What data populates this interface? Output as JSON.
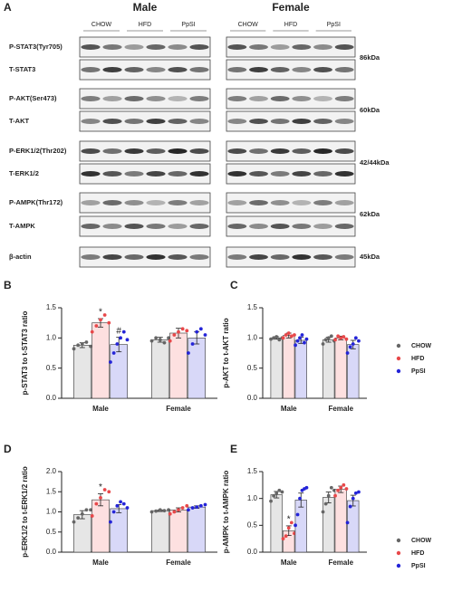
{
  "figure_a": {
    "panel": "A",
    "sexes": [
      "Male",
      "Female"
    ],
    "groups": [
      "CHOW",
      "HFD",
      "PpSI"
    ],
    "rows": [
      "P-STAT3(Tyr705)",
      "T-STAT3",
      "P-AKT(Ser473)",
      "T-AKT",
      "P-ERK1/2(Thr202)",
      "T-ERK1/2",
      "P-AMPK(Thr172)",
      "T-AMPK",
      "β-actin"
    ],
    "sizes": [
      "86kDa",
      "60kDa",
      "42/44kDa",
      "62kDa",
      "45kDa"
    ]
  },
  "chart_data": [
    {
      "type": "bar",
      "panel": "B",
      "ylabel": "p-STAT3 to t-STAT3 ratio",
      "categories": [
        "Male",
        "Female"
      ],
      "ylim": [
        0,
        1.5
      ],
      "yticks": [
        {
          "value": 0,
          "label": "0.0"
        },
        {
          "value": 0.5,
          "label": "0.5"
        },
        {
          "value": 1,
          "label": "1.0"
        },
        {
          "value": 1.5,
          "label": "1.5"
        }
      ],
      "legend": false,
      "series": [
        {
          "name": "CHOW",
          "color": "#666666",
          "fill": "#e6e6e6",
          "values": [
            0.88,
            0.97
          ],
          "errors": [
            0.04,
            0.04
          ],
          "points": [
            [
              0.82,
              0.88,
              0.9,
              0.93,
              0.86
            ],
            [
              0.95,
              1.0,
              0.97,
              0.92,
              1.0
            ]
          ]
        },
        {
          "name": "HFD",
          "color": "#e8484a",
          "fill": "#fde0e0",
          "values": [
            1.25,
            1.08
          ],
          "errors": [
            0.07,
            0.08
          ],
          "points": [
            [
              1.1,
              1.2,
              1.3,
              1.38,
              1.25
            ],
            [
              0.95,
              1.05,
              1.1,
              1.15,
              1.12
            ]
          ],
          "marks": [
            "*",
            null
          ]
        },
        {
          "name": "PpSI",
          "color": "#2424d8",
          "fill": "#d8d8f8",
          "values": [
            0.89,
            1.0
          ],
          "errors": [
            0.12,
            0.1
          ],
          "points": [
            [
              0.6,
              0.75,
              0.9,
              1.0,
              1.1,
              0.97
            ],
            [
              0.75,
              0.9,
              1.1,
              1.15,
              1.05
            ]
          ],
          "marks": [
            "#",
            null
          ]
        }
      ]
    },
    {
      "type": "bar",
      "panel": "C",
      "ylabel": "p-AKT to t-AKT ratio",
      "categories": [
        "Male",
        "Female"
      ],
      "ylim": [
        0,
        1.5
      ],
      "yticks": [
        {
          "value": 0,
          "label": "0.0"
        },
        {
          "value": 0.5,
          "label": "0.5"
        },
        {
          "value": 1,
          "label": "1.0"
        },
        {
          "value": 1.5,
          "label": "1.5"
        }
      ],
      "legend": true,
      "series": [
        {
          "name": "CHOW",
          "color": "#666666",
          "fill": "#e6e6e6",
          "values": [
            1.0,
            0.97
          ],
          "errors": [
            0.02,
            0.04
          ],
          "points": [
            [
              0.98,
              1.0,
              1.02,
              0.97,
              1.0
            ],
            [
              0.9,
              0.97,
              1.0,
              1.03,
              0.95
            ]
          ]
        },
        {
          "name": "HFD",
          "color": "#e8484a",
          "fill": "#fde0e0",
          "values": [
            1.04,
            1.0
          ],
          "errors": [
            0.04,
            0.03
          ],
          "points": [
            [
              1.0,
              1.05,
              1.08,
              1.03,
              1.05
            ],
            [
              0.97,
              1.03,
              1.0,
              1.02,
              0.98
            ]
          ]
        },
        {
          "name": "PpSI",
          "color": "#2424d8",
          "fill": "#d8d8f8",
          "values": [
            0.96,
            0.89
          ],
          "errors": [
            0.05,
            0.07
          ],
          "points": [
            [
              0.88,
              0.95,
              1.0,
              1.05,
              0.92,
              0.98
            ],
            [
              0.75,
              0.85,
              0.9,
              1.0,
              0.95
            ]
          ]
        }
      ]
    },
    {
      "type": "bar",
      "panel": "D",
      "ylabel": "p-ERK1/2 to t-ERK1/2 ratio",
      "categories": [
        "Male",
        "Female"
      ],
      "ylim": [
        0,
        2
      ],
      "yticks": [
        {
          "value": 0,
          "label": "0.0"
        },
        {
          "value": 0.5,
          "label": "0.5"
        },
        {
          "value": 1,
          "label": "1.0"
        },
        {
          "value": 1.5,
          "label": "1.5"
        },
        {
          "value": 2,
          "label": "2.0"
        }
      ],
      "legend": false,
      "series": [
        {
          "name": "CHOW",
          "color": "#666666",
          "fill": "#e6e6e6",
          "values": [
            0.93,
            1.03
          ],
          "errors": [
            0.1,
            0.02
          ],
          "points": [
            [
              0.75,
              0.85,
              0.95,
              1.05,
              1.05
            ],
            [
              1.0,
              1.02,
              1.05,
              1.03,
              1.05
            ]
          ]
        },
        {
          "name": "HFD",
          "color": "#e8484a",
          "fill": "#fde0e0",
          "values": [
            1.3,
            1.05
          ],
          "errors": [
            0.15,
            0.05
          ],
          "points": [
            [
              0.9,
              1.2,
              1.35,
              1.55,
              1.5
            ],
            [
              0.95,
              1.0,
              1.05,
              1.1,
              1.15
            ]
          ],
          "marks": [
            "*",
            null
          ]
        },
        {
          "name": "PpSI",
          "color": "#2424d8",
          "fill": "#d8d8f8",
          "values": [
            1.08,
            1.12
          ],
          "errors": [
            0.1,
            0.03
          ],
          "points": [
            [
              0.75,
              1.0,
              1.15,
              1.25,
              1.2,
              1.1
            ],
            [
              1.05,
              1.1,
              1.12,
              1.15,
              1.18
            ]
          ]
        }
      ]
    },
    {
      "type": "bar",
      "panel": "E",
      "ylabel": "p-AMPK to t-AMPK ratio",
      "categories": [
        "Male",
        "Female"
      ],
      "ylim": [
        0,
        1.5
      ],
      "yticks": [
        {
          "value": 0,
          "label": "0.0"
        },
        {
          "value": 0.5,
          "label": "0.5"
        },
        {
          "value": 1,
          "label": "1.0"
        },
        {
          "value": 1.5,
          "label": "1.5"
        }
      ],
      "legend": true,
      "series": [
        {
          "name": "CHOW",
          "color": "#666666",
          "fill": "#e6e6e6",
          "values": [
            1.07,
            1.02
          ],
          "errors": [
            0.06,
            0.1
          ],
          "points": [
            [
              0.95,
              1.05,
              1.1,
              1.15,
              1.12
            ],
            [
              0.75,
              0.9,
              1.05,
              1.2,
              1.15
            ]
          ]
        },
        {
          "name": "HFD",
          "color": "#e8484a",
          "fill": "#fde0e0",
          "values": [
            0.4,
            1.17
          ],
          "errors": [
            0.09,
            0.06
          ],
          "points": [
            [
              0.25,
              0.3,
              0.45,
              0.55,
              0.35
            ],
            [
              1.05,
              1.15,
              1.2,
              1.25,
              1.18
            ]
          ],
          "marks": [
            "*",
            null
          ]
        },
        {
          "name": "PpSI",
          "color": "#2424d8",
          "fill": "#d8d8f8",
          "values": [
            0.97,
            0.96
          ],
          "errors": [
            0.13,
            0.1
          ],
          "points": [
            [
              0.5,
              0.7,
              1.0,
              1.15,
              1.18,
              1.2
            ],
            [
              0.55,
              0.85,
              1.0,
              1.1,
              1.12
            ]
          ]
        }
      ]
    }
  ]
}
